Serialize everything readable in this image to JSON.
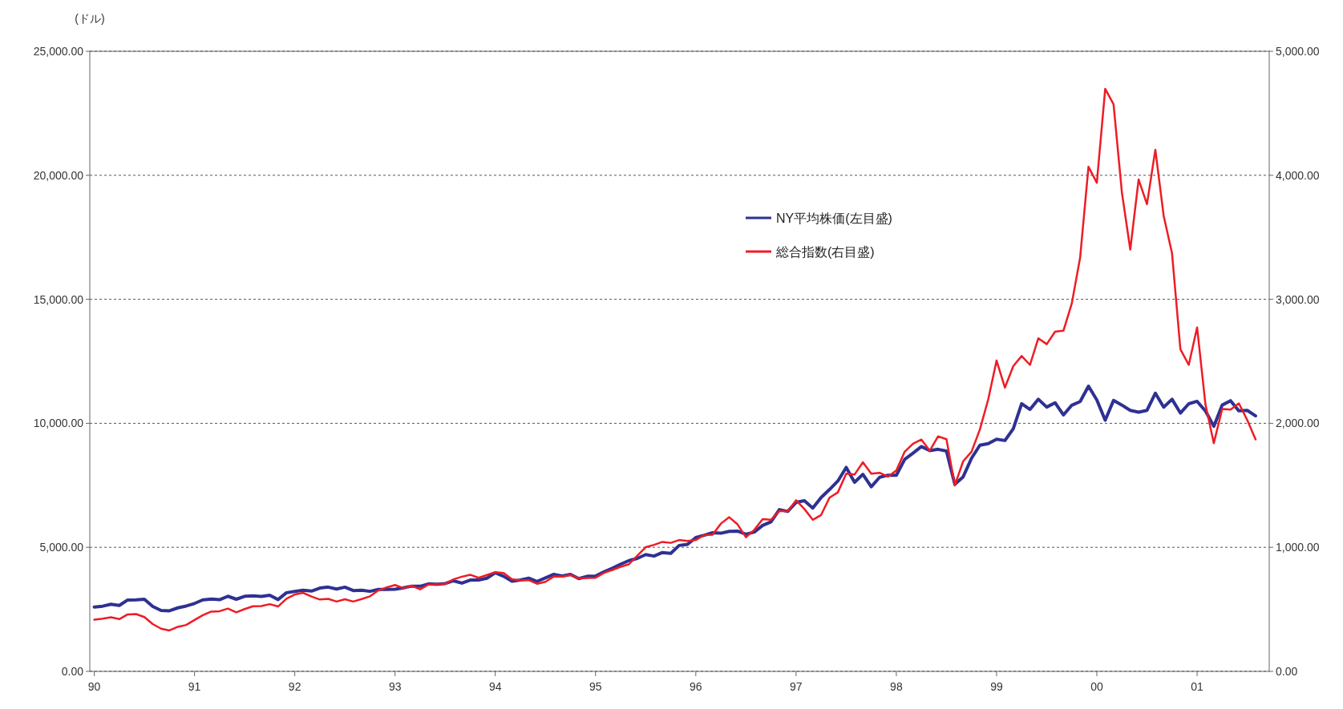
{
  "chart_data": {
    "type": "line",
    "ylabel": "(ドル)",
    "x": [
      "1990-01",
      "1990-02",
      "1990-03",
      "1990-04",
      "1990-05",
      "1990-06",
      "1990-07",
      "1990-08",
      "1990-09",
      "1990-10",
      "1990-11",
      "1990-12",
      "1991-01",
      "1991-02",
      "1991-03",
      "1991-04",
      "1991-05",
      "1991-06",
      "1991-07",
      "1991-08",
      "1991-09",
      "1991-10",
      "1991-11",
      "1991-12",
      "1992-01",
      "1992-02",
      "1992-03",
      "1992-04",
      "1992-05",
      "1992-06",
      "1992-07",
      "1992-08",
      "1992-09",
      "1992-10",
      "1992-11",
      "1992-12",
      "1993-01",
      "1993-02",
      "1993-03",
      "1993-04",
      "1993-05",
      "1993-06",
      "1993-07",
      "1993-08",
      "1993-09",
      "1993-10",
      "1993-11",
      "1993-12",
      "1994-01",
      "1994-02",
      "1994-03",
      "1994-04",
      "1994-05",
      "1994-06",
      "1994-07",
      "1994-08",
      "1994-09",
      "1994-10",
      "1994-11",
      "1994-12",
      "1995-01",
      "1995-02",
      "1995-03",
      "1995-04",
      "1995-05",
      "1995-06",
      "1995-07",
      "1995-08",
      "1995-09",
      "1995-10",
      "1995-11",
      "1995-12",
      "1996-01",
      "1996-02",
      "1996-03",
      "1996-04",
      "1996-05",
      "1996-06",
      "1996-07",
      "1996-08",
      "1996-09",
      "1996-10",
      "1996-11",
      "1996-12",
      "1997-01",
      "1997-02",
      "1997-03",
      "1997-04",
      "1997-05",
      "1997-06",
      "1997-07",
      "1997-08",
      "1997-09",
      "1997-10",
      "1997-11",
      "1997-12",
      "1998-01",
      "1998-02",
      "1998-03",
      "1998-04",
      "1998-05",
      "1998-06",
      "1998-07",
      "1998-08",
      "1998-09",
      "1998-10",
      "1998-11",
      "1998-12",
      "1999-01",
      "1999-02",
      "1999-03",
      "1999-04",
      "1999-05",
      "1999-06",
      "1999-07",
      "1999-08",
      "1999-09",
      "1999-10",
      "1999-11",
      "1999-12",
      "2000-01",
      "2000-02",
      "2000-03",
      "2000-04",
      "2000-05",
      "2000-06",
      "2000-07",
      "2000-08",
      "2000-09",
      "2000-10",
      "2000-11",
      "2000-12",
      "2001-01",
      "2001-02",
      "2001-03",
      "2001-04",
      "2001-05",
      "2001-06",
      "2001-07",
      "2001-08"
    ],
    "series": [
      {
        "name": "NY平均株価(左目盛)",
        "color": "#2e3192",
        "values": [
          2590,
          2627,
          2707,
          2657,
          2877,
          2881,
          2905,
          2614,
          2453,
          2442,
          2560,
          2634,
          2736,
          2882,
          2914,
          2888,
          3028,
          2907,
          3025,
          3044,
          3017,
          3069,
          2895,
          3169,
          3224,
          3267,
          3236,
          3359,
          3397,
          3319,
          3394,
          3257,
          3272,
          3226,
          3305,
          3301,
          3310,
          3370,
          3435,
          3428,
          3527,
          3516,
          3540,
          3651,
          3555,
          3681,
          3684,
          3754,
          3978,
          3832,
          3636,
          3682,
          3758,
          3625,
          3765,
          3913,
          3843,
          3908,
          3739,
          3834,
          3844,
          4011,
          4158,
          4321,
          4465,
          4556,
          4709,
          4647,
          4790,
          4756,
          5075,
          5117,
          5395,
          5486,
          5588,
          5569,
          5643,
          5655,
          5529,
          5616,
          5882,
          6029,
          6522,
          6448,
          6813,
          6878,
          6584,
          7009,
          7331,
          7673,
          8223,
          7622,
          7945,
          7442,
          7823,
          7908,
          7907,
          8546,
          8800,
          9063,
          8900,
          8952,
          8883,
          7539,
          7843,
          8592,
          9117,
          9181,
          9359,
          9307,
          9786,
          10789,
          10560,
          10971,
          10655,
          10829,
          10337,
          10730,
          10878,
          11497,
          10940,
          10128,
          10922,
          10734,
          10522,
          10448,
          10522,
          11215,
          10651,
          10971,
          10415,
          10788,
          10887,
          10495,
          9879,
          10735,
          10912,
          10502,
          10523,
          10300
        ]
      },
      {
        "name": "総合指数(右目盛)",
        "color": "#ee1c25",
        "axis": "y2",
        "values": [
          416,
          425,
          436,
          421,
          459,
          462,
          438,
          381,
          344,
          330,
          359,
          374,
          414,
          453,
          482,
          485,
          506,
          476,
          502,
          525,
          527,
          542,
          523,
          586,
          620,
          633,
          603,
          579,
          585,
          563,
          581,
          563,
          583,
          605,
          652,
          677,
          696,
          671,
          690,
          661,
          700,
          704,
          705,
          742,
          763,
          779,
          754,
          777,
          800,
          793,
          743,
          733,
          735,
          706,
          722,
          765,
          764,
          777,
          750,
          752,
          755,
          794,
          817,
          843,
          864,
          933,
          1001,
          1020,
          1044,
          1036,
          1059,
          1052,
          1059,
          1100,
          1101,
          1191,
          1243,
          1185,
          1081,
          1141,
          1227,
          1222,
          1293,
          1291,
          1380,
          1309,
          1222,
          1261,
          1400,
          1443,
          1594,
          1587,
          1686,
          1594,
          1601,
          1570,
          1619,
          1771,
          1835,
          1869,
          1779,
          1895,
          1872,
          1499,
          1694,
          1771,
          1950,
          2193,
          2506,
          2288,
          2461,
          2543,
          2471,
          2686,
          2638,
          2739,
          2747,
          2966,
          3336,
          4069,
          3940,
          4697,
          4573,
          3861,
          3401,
          3966,
          3767,
          4206,
          3673,
          3370,
          2598,
          2471,
          2773,
          2152,
          1840,
          2116,
          2110,
          2161,
          2027,
          1870
        ]
      }
    ],
    "xlim": [
      "1989-12-15",
      "2001-09-20"
    ],
    "xticks": [
      {
        "value": "1990-01",
        "label": "90"
      },
      {
        "value": "1991-01",
        "label": "91"
      },
      {
        "value": "1992-01",
        "label": "92"
      },
      {
        "value": "1993-01",
        "label": "93"
      },
      {
        "value": "1994-01",
        "label": "94"
      },
      {
        "value": "1995-01",
        "label": "95"
      },
      {
        "value": "1996-01",
        "label": "96"
      },
      {
        "value": "1997-01",
        "label": "97"
      },
      {
        "value": "1998-01",
        "label": "98"
      },
      {
        "value": "1999-01",
        "label": "99"
      },
      {
        "value": "2000-01",
        "label": "00"
      },
      {
        "value": "2001-01",
        "label": "01"
      }
    ],
    "ylim": [
      0,
      25000
    ],
    "yticks": [
      {
        "value": 0,
        "label": "0.00"
      },
      {
        "value": 5000,
        "label": "5,000.00"
      },
      {
        "value": 10000,
        "label": "10,000.00"
      },
      {
        "value": 15000,
        "label": "15,000.00"
      },
      {
        "value": 20000,
        "label": "20,000.00"
      },
      {
        "value": 25000,
        "label": "25,000.00"
      }
    ],
    "y2lim": [
      0,
      5000
    ],
    "y2ticks": [
      {
        "value": 0,
        "label": "0.00"
      },
      {
        "value": 1000,
        "label": "1,000.00"
      },
      {
        "value": 2000,
        "label": "2,000.00"
      },
      {
        "value": 3000,
        "label": "3,000.00"
      },
      {
        "value": 4000,
        "label": "4,000.00"
      },
      {
        "value": 5000,
        "label": "5,000.00"
      }
    ],
    "grid": "y",
    "legend": "top right",
    "line_style": "solid",
    "marker": "none"
  }
}
